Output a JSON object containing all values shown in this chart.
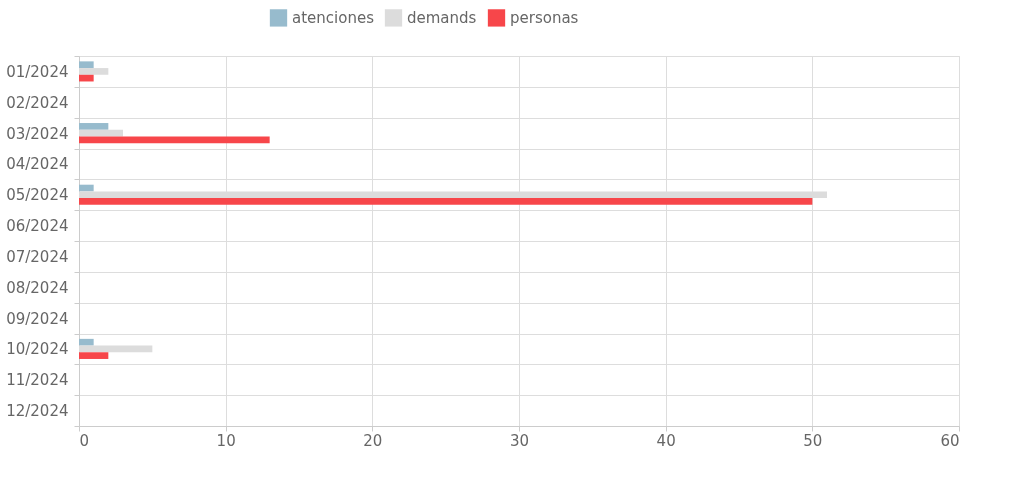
{
  "chart_data": {
    "type": "bar",
    "orientation": "horizontal",
    "categories": [
      "01/2024",
      "02/2024",
      "03/2024",
      "04/2024",
      "05/2024",
      "06/2024",
      "07/2024",
      "08/2024",
      "09/2024",
      "10/2024",
      "11/2024",
      "12/2024"
    ],
    "series": [
      {
        "name": "atenciones",
        "color": "#97bbcd",
        "values": [
          1,
          null,
          2,
          null,
          1,
          null,
          null,
          null,
          null,
          1,
          null,
          null
        ]
      },
      {
        "name": "demands",
        "color": "#dcdcdc",
        "values": [
          2,
          null,
          3,
          null,
          51,
          null,
          null,
          null,
          null,
          5,
          null,
          null
        ]
      },
      {
        "name": "personas",
        "color": "#f7464a",
        "values": [
          1,
          null,
          13,
          null,
          50,
          null,
          null,
          null,
          null,
          2,
          null,
          null
        ]
      }
    ],
    "xlim": [
      0,
      60
    ],
    "xticks": [
      0,
      10,
      20,
      30,
      40,
      50,
      60
    ],
    "grid": true,
    "legend": "top"
  }
}
